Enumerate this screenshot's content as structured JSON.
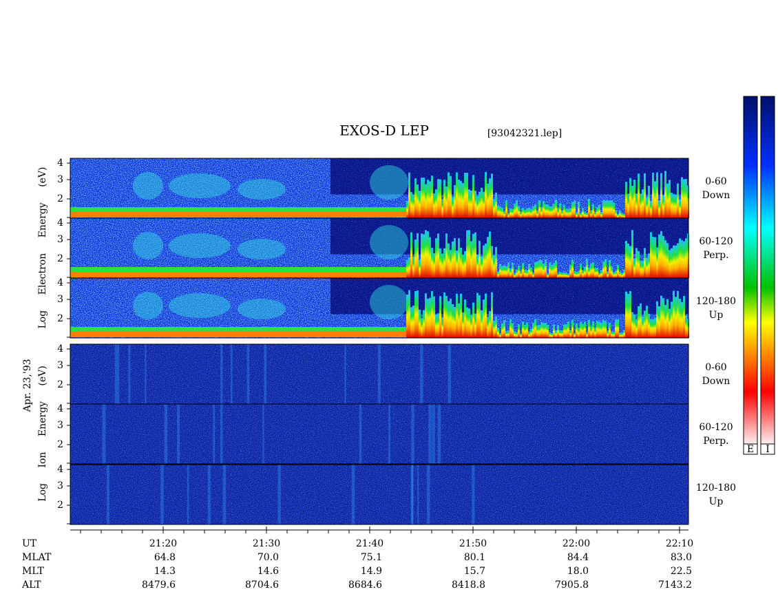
{
  "header": {
    "title": "EXOS-D LEP",
    "file": "[93042321.lep]"
  },
  "date": "Apr. 23,'93",
  "energy_ticks": [
    "4",
    "3",
    "2"
  ],
  "electron": {
    "axis_label": "Log Electron Energy (eV)",
    "panels": [
      {
        "pitch": "0-60",
        "direction": "Down"
      },
      {
        "pitch": "60-120",
        "direction": "Perp."
      },
      {
        "pitch": "120-180",
        "direction": "Up"
      }
    ]
  },
  "ion": {
    "axis_label": "Log Ion Energy (eV)",
    "panels": [
      {
        "pitch": "0-60",
        "direction": "Down"
      },
      {
        "pitch": "60-120",
        "direction": "Perp."
      },
      {
        "pitch": "120-180",
        "direction": "Up"
      }
    ]
  },
  "time_axis": {
    "rows": [
      {
        "label": "UT",
        "values": [
          "21:20",
          "21:30",
          "21:40",
          "21:50",
          "22:00",
          "22:10"
        ]
      },
      {
        "label": "MLAT",
        "values": [
          "64.8",
          "70.0",
          "75.1",
          "80.1",
          "84.4",
          "83.0"
        ]
      },
      {
        "label": "MLT",
        "values": [
          "14.3",
          "14.6",
          "14.9",
          "15.7",
          "18.0",
          "22.5"
        ]
      },
      {
        "label": "ALT",
        "values": [
          "8479.6",
          "8704.6",
          "8684.6",
          "8418.8",
          "7905.8",
          "7143.2"
        ]
      }
    ]
  },
  "colorbars": [
    "E",
    "I"
  ]
}
